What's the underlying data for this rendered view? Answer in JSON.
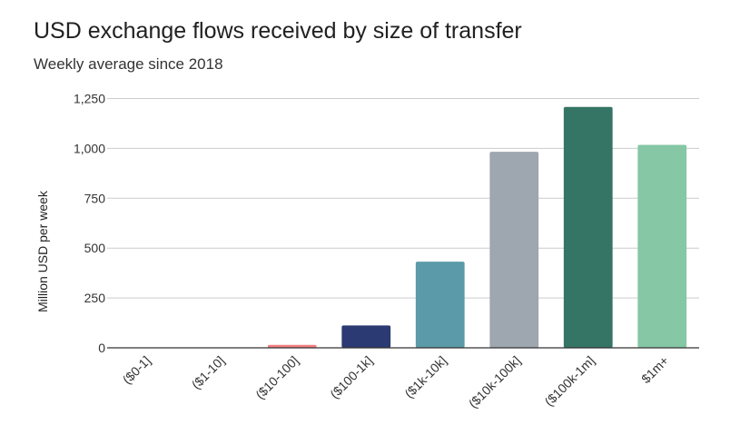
{
  "chart_data": {
    "type": "bar",
    "title": "USD exchange flows received by size of transfer",
    "subtitle": "Weekly average since 2018",
    "xlabel": "",
    "ylabel": "Million USD per week",
    "ylim": [
      0,
      1250
    ],
    "yticks": [
      0,
      250,
      500,
      750,
      1000,
      1250
    ],
    "ytick_labels": [
      "0",
      "250",
      "500",
      "750",
      "1,000",
      "1,250"
    ],
    "categories": [
      "($0-1]",
      "($1-10]",
      "($10-100]",
      "($100-1k]",
      "($1k-10k]",
      "($10k-100k]",
      "($100k-1m]",
      "$1m+"
    ],
    "values": [
      0.5,
      1,
      15,
      112,
      432,
      983,
      1208,
      1018
    ],
    "colors": [
      "#e0e0e0",
      "#d9d9d9",
      "#f08080",
      "#2b3a72",
      "#5b9aa8",
      "#9ea7b0",
      "#357565",
      "#86c7a5"
    ],
    "grid": true,
    "legend": "none"
  }
}
